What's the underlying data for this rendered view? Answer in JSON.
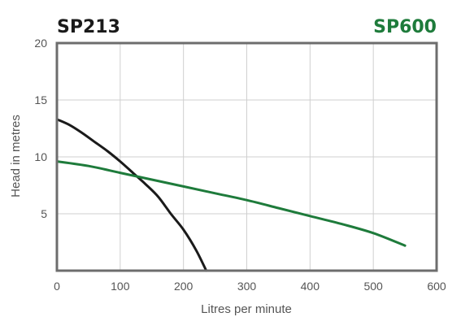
{
  "chart_data": {
    "type": "line",
    "xlabel": "Litres per minute",
    "ylabel": "Head in metres",
    "xlim": [
      0,
      600
    ],
    "ylim": [
      0,
      20
    ],
    "xticks": [
      "0",
      "100",
      "200",
      "300",
      "400",
      "500",
      "600"
    ],
    "yticks": [
      "5",
      "10",
      "15",
      "20"
    ],
    "grid": true,
    "series": [
      {
        "name": "SP213",
        "color": "#1a1a1a",
        "x": [
          0,
          20,
          40,
          60,
          80,
          100,
          120,
          140,
          160,
          180,
          200,
          220,
          236
        ],
        "y": [
          13.3,
          12.8,
          12.1,
          11.3,
          10.5,
          9.6,
          8.6,
          7.6,
          6.5,
          5.0,
          3.6,
          1.8,
          0.0
        ]
      },
      {
        "name": "SP600",
        "color": "#1e7b3b",
        "x": [
          0,
          50,
          100,
          150,
          200,
          250,
          300,
          350,
          400,
          450,
          500,
          550
        ],
        "y": [
          9.6,
          9.2,
          8.6,
          8.0,
          7.4,
          6.8,
          6.2,
          5.5,
          4.8,
          4.1,
          3.3,
          2.2
        ]
      }
    ]
  }
}
